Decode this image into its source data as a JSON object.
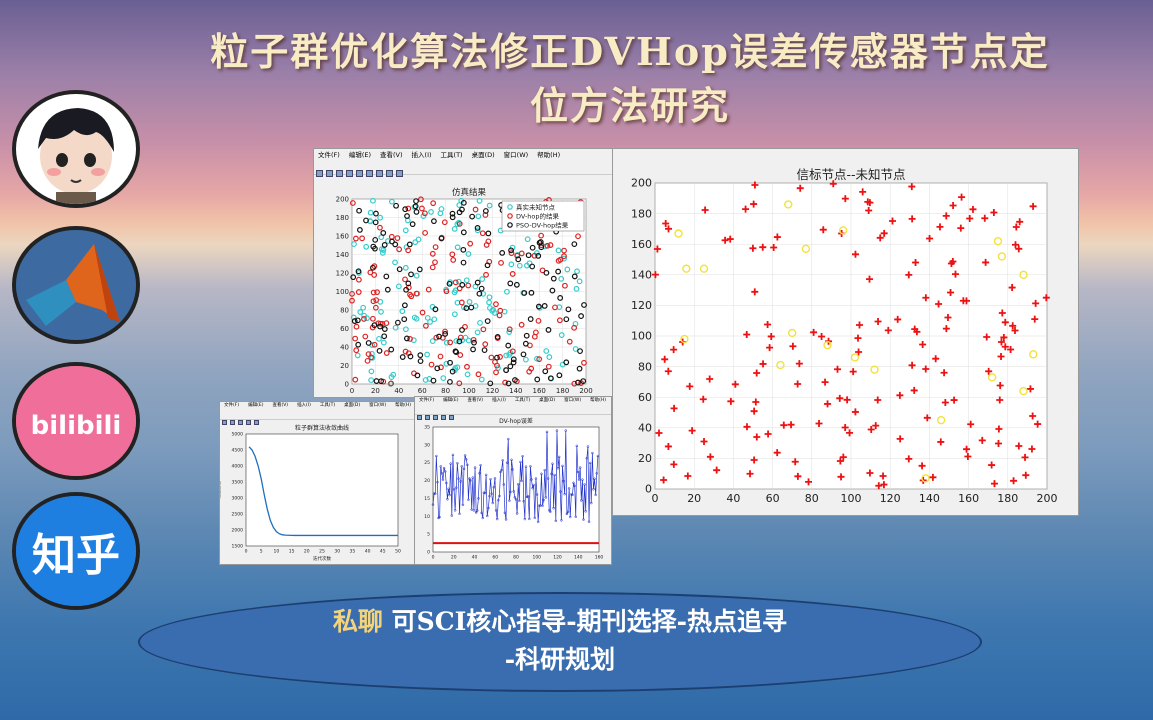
{
  "page": {
    "title_line1": "粒子群优化算法修正DVHop误差传感器节点定",
    "title_line2": "位方法研究",
    "ad_highlight": "私聊",
    "ad_line1": "可SCI核心指导-期刊选择-热点追寻",
    "ad_line2": "-科研规划",
    "bili_text": "bilibili",
    "zhihu_text": "知乎"
  },
  "sidebar_icons": [
    "avatar-icon",
    "matlab-icon",
    "bilibili-icon",
    "zhihu-icon"
  ],
  "windows": {
    "main_menu": [
      "文件(F)",
      "编辑(E)",
      "查看(V)",
      "插入(I)",
      "工具(T)",
      "桌面(D)",
      "窗口(W)",
      "帮助(H)"
    ],
    "small_menu": [
      "文件(F)",
      "编辑(E)",
      "查看(V)",
      "插入(I)",
      "工具(T)",
      "桌面(D)",
      "窗口(W)",
      "帮助(H)"
    ]
  },
  "chart_data": [
    {
      "id": "sim",
      "type": "scatter",
      "title": "仿真结果",
      "xlim": [
        0,
        200
      ],
      "ylim": [
        0,
        200
      ],
      "xticks": [
        0,
        20,
        40,
        60,
        80,
        100,
        120,
        140,
        160,
        180,
        200
      ],
      "yticks": [
        0,
        20,
        40,
        60,
        80,
        100,
        120,
        140,
        160,
        180,
        200
      ],
      "grid": true,
      "legend_position": "top-right",
      "series": [
        {
          "name": "真实未知节点",
          "color": "#33cccc",
          "count": 150
        },
        {
          "name": "DV-hop的结果",
          "color": "#dd2222",
          "count": 150
        },
        {
          "name": "PSO-DV-hop结果",
          "color": "#111111",
          "count": 150
        }
      ]
    },
    {
      "id": "beacon",
      "type": "scatter",
      "title": "信标节点--未知节点",
      "xlim": [
        0,
        200
      ],
      "ylim": [
        0,
        200
      ],
      "xticks": [
        0,
        20,
        40,
        60,
        80,
        100,
        120,
        140,
        160,
        180,
        200
      ],
      "yticks": [
        0,
        20,
        40,
        60,
        80,
        100,
        120,
        140,
        160,
        180,
        200
      ],
      "grid": true,
      "series": [
        {
          "marker": "plus",
          "color": "#ee1111",
          "count": 180
        },
        {
          "marker": "circle",
          "color": "#f2e23a",
          "points": [
            [
              12,
              167
            ],
            [
              16,
              144
            ],
            [
              25,
              144
            ],
            [
              15,
              98
            ],
            [
              68,
              186
            ],
            [
              70,
              102
            ],
            [
              77,
              157
            ],
            [
              64,
              81
            ],
            [
              88,
              94
            ],
            [
              96,
              169
            ],
            [
              102,
              86
            ],
            [
              112,
              78
            ],
            [
              138,
              7
            ],
            [
              146,
              45
            ],
            [
              172,
              73
            ],
            [
              175,
              162
            ],
            [
              177,
              152
            ],
            [
              188,
              140
            ],
            [
              188,
              64
            ],
            [
              193,
              88
            ]
          ]
        }
      ]
    },
    {
      "id": "pso",
      "type": "line",
      "title": "粒子群算法收敛曲线",
      "xlabel": "迭代次数",
      "ylabel": "适应度值",
      "xlim": [
        0,
        50
      ],
      "ylim": [
        1500,
        5000
      ],
      "xticks": [
        0,
        5,
        10,
        15,
        20,
        25,
        30,
        35,
        40,
        45,
        50
      ],
      "yticks": [
        1500,
        2000,
        2500,
        3000,
        3500,
        4000,
        4500,
        5000
      ],
      "x": [
        1,
        2,
        3,
        4,
        5,
        6,
        7,
        8,
        9,
        10,
        11,
        12,
        13,
        14,
        15,
        16,
        18,
        20,
        25,
        30,
        35,
        40,
        45,
        50
      ],
      "y": [
        4600,
        4500,
        4300,
        4000,
        3600,
        3100,
        2650,
        2300,
        2080,
        1950,
        1880,
        1850,
        1840,
        1835,
        1832,
        1830,
        1830,
        1830,
        1830,
        1830,
        1830,
        1830,
        1830,
        1830
      ],
      "grid": false
    },
    {
      "id": "dvhop",
      "type": "line",
      "title": "DV-hop误差",
      "xlim": [
        0,
        160
      ],
      "ylim": [
        0,
        35
      ],
      "xticks": [
        0,
        20,
        40,
        60,
        80,
        100,
        120,
        140,
        160
      ],
      "yticks": [
        0,
        5,
        10,
        15,
        20,
        25,
        30,
        35
      ],
      "baseline": 2.5,
      "count": 150,
      "grid": false
    }
  ]
}
